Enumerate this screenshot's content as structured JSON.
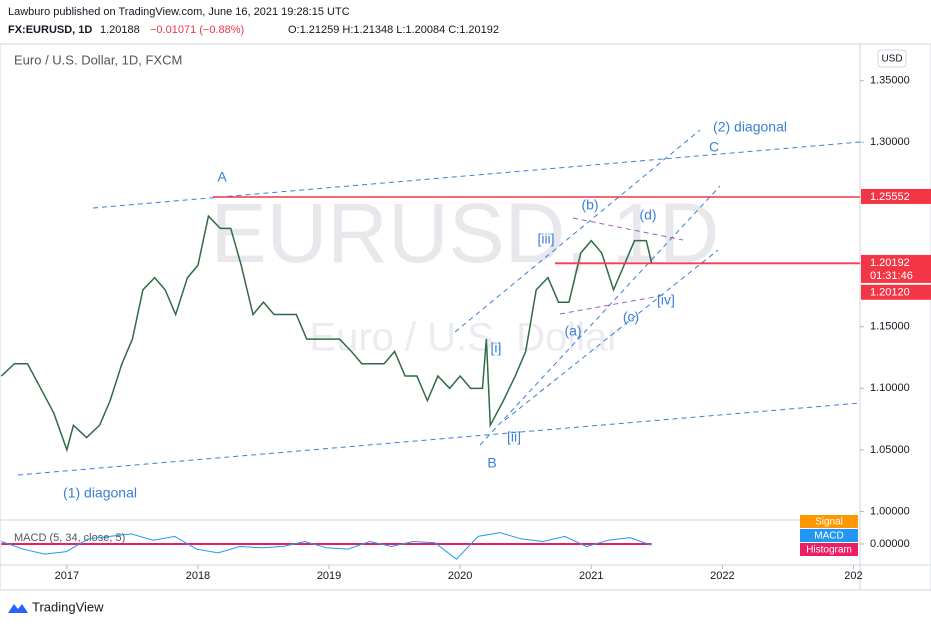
{
  "header": {
    "published": "Lawburo published on TradingView.com, June 16, 2021 19:28:15 UTC",
    "symbol": "FX:EURUSD, 1D",
    "last": "1.20188",
    "change": "−0.01071 (−0.88%)",
    "ohlc": "O:1.21259 H:1.21348 L:1.20084 C:1.20192"
  },
  "footer": "TradingView",
  "chart_data": {
    "type": "line",
    "title": "Euro / U.S. Dollar, 1D, FXCM",
    "watermark": "EURUSD, 1D",
    "watermark_sub": "Euro / U.S. Dollar",
    "currency": "USD",
    "x": [
      2016.5,
      2016.6,
      2016.7,
      2016.8,
      2016.9,
      2017.0,
      2017.05,
      2017.15,
      2017.25,
      2017.33,
      2017.42,
      2017.5,
      2017.58,
      2017.67,
      2017.75,
      2017.83,
      2017.92,
      2018.0,
      2018.08,
      2018.17,
      2018.25,
      2018.33,
      2018.42,
      2018.5,
      2018.58,
      2018.67,
      2018.75,
      2018.83,
      2018.92,
      2019.0,
      2019.08,
      2019.17,
      2019.25,
      2019.33,
      2019.42,
      2019.5,
      2019.58,
      2019.67,
      2019.75,
      2019.83,
      2019.92,
      2020.0,
      2020.08,
      2020.17,
      2020.2,
      2020.23,
      2020.33,
      2020.42,
      2020.5,
      2020.58,
      2020.67,
      2020.75,
      2020.83,
      2020.92,
      2021.0,
      2021.08,
      2021.17,
      2021.25,
      2021.33,
      2021.42,
      2021.46
    ],
    "series": [
      {
        "name": "EURUSD",
        "color": "#2f6b45",
        "values": [
          1.11,
          1.12,
          1.12,
          1.1,
          1.08,
          1.05,
          1.07,
          1.06,
          1.07,
          1.09,
          1.12,
          1.14,
          1.18,
          1.19,
          1.18,
          1.16,
          1.19,
          1.2,
          1.24,
          1.23,
          1.23,
          1.2,
          1.16,
          1.17,
          1.16,
          1.16,
          1.16,
          1.14,
          1.14,
          1.14,
          1.14,
          1.13,
          1.12,
          1.12,
          1.12,
          1.13,
          1.11,
          1.11,
          1.09,
          1.11,
          1.1,
          1.11,
          1.1,
          1.1,
          1.14,
          1.07,
          1.09,
          1.11,
          1.13,
          1.18,
          1.19,
          1.17,
          1.17,
          1.21,
          1.22,
          1.21,
          1.18,
          1.2,
          1.22,
          1.22,
          1.20192
        ]
      }
    ],
    "xlim": [
      2016.49,
      2023.05
    ],
    "xticks": [
      2017,
      2018,
      2019,
      2020,
      2021,
      2022,
      {
        "value": 2023,
        "label": "202"
      }
    ],
    "ylim": [
      0.993,
      1.379
    ],
    "yticks": [
      {
        "value": 1.35,
        "label": "1.35000"
      },
      {
        "value": 1.3,
        "label": "1.30000"
      },
      {
        "value": 1.15,
        "label": "1.15000"
      },
      {
        "value": 1.1,
        "label": "1.10000"
      },
      {
        "value": 1.05,
        "label": "1.05000"
      },
      {
        "value": 1.0,
        "label": "1.00000"
      }
    ],
    "price_markers": [
      {
        "value": 1.25552,
        "color": "#f23645"
      },
      {
        "value": 1.20192,
        "color": "#f23645",
        "countdown": "01:31:46"
      },
      {
        "value": 1.2012,
        "label": "1.20120",
        "color": "#f23645"
      }
    ],
    "annotations": [
      "A",
      "B",
      "C",
      "(1) diagonal",
      "(2) diagonal",
      "(a)",
      "(b)",
      "(c)",
      "(d)",
      "[i]",
      "[ii]",
      "[iii]",
      "[iv]"
    ],
    "macd": {
      "title": "MACD (5, 34, close, 5)",
      "legend": [
        "Signal",
        "MACD",
        "Histogram"
      ],
      "colors": [
        "#ff9800",
        "#2196f3",
        "#e91e63"
      ],
      "ylim": [
        -0.015,
        0.015
      ],
      "yticks": [
        {
          "value": 0,
          "label": "0.00000"
        }
      ],
      "values": [
        0.002,
        -0.004,
        -0.008,
        -0.006,
        0.004,
        0.006,
        0.008,
        0.003,
        0.006,
        -0.004,
        -0.007,
        -0.002,
        -0.003,
        -0.002,
        0.002,
        -0.003,
        -0.004,
        0.002,
        -0.002,
        0.002,
        0.001,
        -0.012,
        0.006,
        0.009,
        0.004,
        0.002,
        0.006,
        -0.002,
        0.003,
        0.005,
        -0.001
      ]
    }
  }
}
